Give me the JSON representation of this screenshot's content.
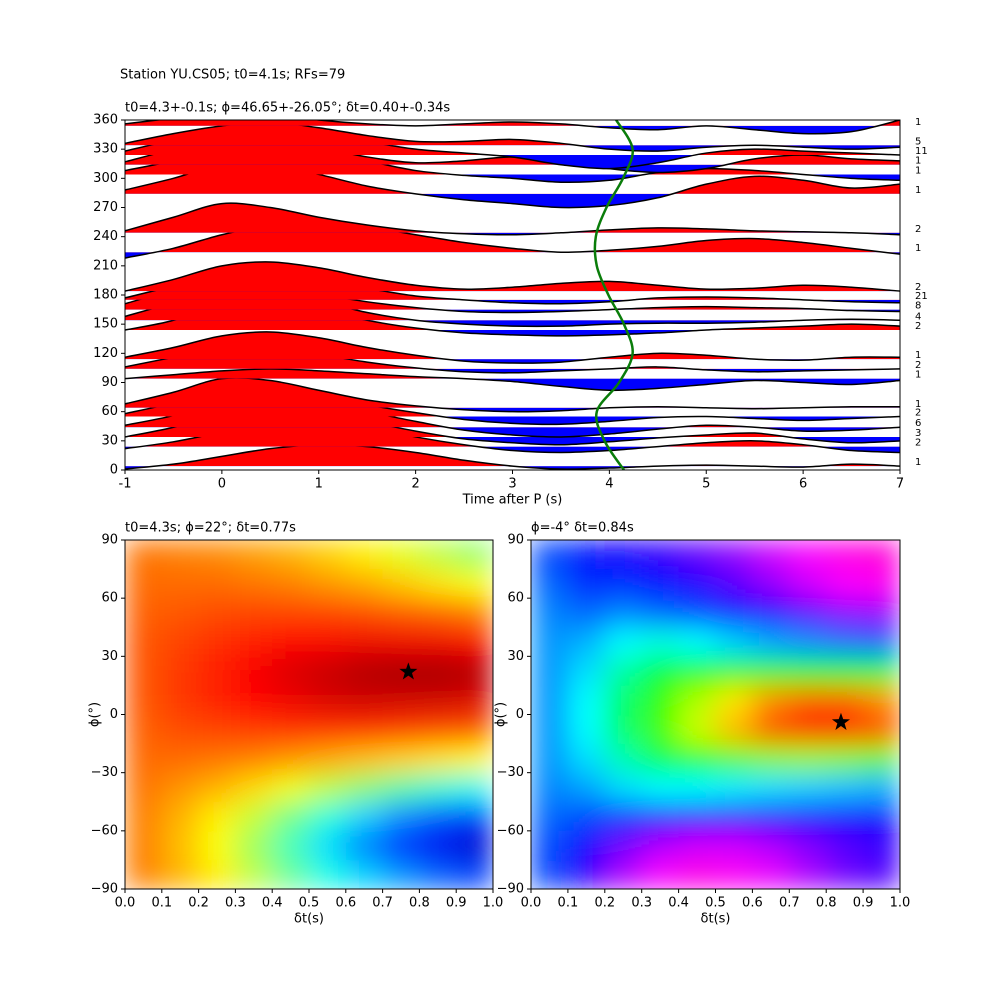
{
  "chart_data": [
    {
      "type": "wiggle",
      "suptitle": "Station YU.CS05; t0=4.1s; RFs=79",
      "title": "t0=4.3+-0.1s; ϕ=46.65+-26.05°; δt=0.40+-0.34s",
      "xlabel": "Time after P (s)",
      "xlim": [
        -1,
        7
      ],
      "xticks": [
        -1,
        0,
        1,
        2,
        3,
        4,
        5,
        6,
        7
      ],
      "ylim": [
        0,
        360
      ],
      "yticks": [
        0,
        30,
        60,
        90,
        120,
        150,
        180,
        210,
        240,
        270,
        300,
        330,
        360
      ],
      "positive_color": "#ff0000",
      "negative_color": "#0000ff",
      "times": [
        -1,
        -0.5,
        0,
        0.5,
        1,
        1.5,
        2,
        2.5,
        3,
        3.5,
        4,
        4.5,
        5,
        5.5,
        6,
        6.5,
        7
      ],
      "traces": [
        {
          "baz": 4,
          "count": 1,
          "values": [
            -3,
            2,
            10,
            18,
            22,
            20,
            14,
            6,
            0,
            -3,
            -2,
            0,
            1,
            0,
            -1,
            2,
            0
          ]
        },
        {
          "baz": 24,
          "count": 2,
          "values": [
            -2,
            5,
            15,
            24,
            26,
            20,
            10,
            2,
            -4,
            -6,
            -4,
            0,
            4,
            6,
            2,
            -4,
            -6
          ]
        },
        {
          "baz": 34,
          "count": 3,
          "values": [
            0,
            10,
            24,
            30,
            26,
            16,
            6,
            -2,
            -6,
            -8,
            -5,
            -1,
            2,
            4,
            -2,
            -6,
            -4
          ]
        },
        {
          "baz": 44,
          "count": 6,
          "values": [
            2,
            12,
            26,
            32,
            26,
            16,
            6,
            -3,
            -8,
            -10,
            -7,
            -2,
            2,
            0,
            -4,
            -3,
            0
          ]
        },
        {
          "baz": 55,
          "count": 2,
          "values": [
            3,
            14,
            28,
            30,
            22,
            12,
            4,
            -3,
            -7,
            -8,
            -5,
            -1,
            0,
            -2,
            -4,
            -2,
            0
          ]
        },
        {
          "baz": 64,
          "count": 1,
          "values": [
            4,
            16,
            30,
            28,
            18,
            8,
            2,
            -2,
            -4,
            -3,
            0,
            1,
            0,
            -1,
            0,
            1,
            1
          ]
        },
        {
          "baz": 94,
          "count": 1,
          "values": [
            0,
            4,
            8,
            10,
            8,
            5,
            2,
            0,
            -3,
            -8,
            -12,
            -10,
            -6,
            -2,
            -4,
            -6,
            -2
          ]
        },
        {
          "baz": 104,
          "count": 2,
          "values": [
            2,
            12,
            22,
            22,
            15,
            7,
            1,
            -3,
            -4,
            -2,
            0,
            2,
            -1,
            -3,
            -2,
            -1,
            0
          ]
        },
        {
          "baz": 114,
          "count": 1,
          "values": [
            2,
            12,
            24,
            28,
            22,
            12,
            4,
            -2,
            -4,
            -3,
            2,
            6,
            4,
            0,
            -1,
            2,
            2
          ]
        },
        {
          "baz": 144,
          "count": 2,
          "values": [
            0,
            10,
            28,
            32,
            22,
            10,
            2,
            -3,
            -5,
            -6,
            -5,
            -3,
            0,
            2,
            4,
            6,
            4
          ]
        },
        {
          "baz": 154,
          "count": 4,
          "values": [
            4,
            18,
            32,
            30,
            20,
            8,
            0,
            -4,
            -6,
            -6,
            -4,
            -3,
            -3,
            -2,
            0,
            1,
            0
          ]
        },
        {
          "baz": 165,
          "count": 8,
          "values": [
            6,
            20,
            30,
            26,
            16,
            8,
            2,
            -2,
            -3,
            -2,
            0,
            2,
            3,
            2,
            1,
            -1,
            -2
          ]
        },
        {
          "baz": 175,
          "count": 21,
          "values": [
            2,
            14,
            24,
            28,
            22,
            12,
            4,
            0,
            -3,
            -4,
            -2,
            2,
            3,
            2,
            0,
            -2,
            -3
          ]
        },
        {
          "baz": 184,
          "count": 2,
          "values": [
            0,
            12,
            26,
            30,
            24,
            14,
            6,
            2,
            4,
            8,
            10,
            6,
            2,
            3,
            6,
            4,
            0
          ]
        },
        {
          "baz": 224,
          "count": 1,
          "values": [
            -6,
            4,
            18,
            28,
            30,
            26,
            18,
            10,
            4,
            0,
            2,
            6,
            12,
            14,
            10,
            4,
            -2
          ]
        },
        {
          "baz": 244,
          "count": 2,
          "values": [
            2,
            16,
            30,
            26,
            16,
            8,
            2,
            -1,
            -2,
            0,
            3,
            5,
            4,
            2,
            1,
            0,
            -2
          ]
        },
        {
          "baz": 284,
          "count": 1,
          "values": [
            4,
            16,
            30,
            30,
            20,
            8,
            0,
            -6,
            -10,
            -14,
            -12,
            -4,
            10,
            18,
            14,
            6,
            10
          ]
        },
        {
          "baz": 304,
          "count": 1,
          "values": [
            4,
            14,
            26,
            30,
            24,
            14,
            4,
            -1,
            -4,
            -8,
            -6,
            2,
            6,
            4,
            0,
            -4,
            -6
          ]
        },
        {
          "baz": 314,
          "count": 1,
          "values": [
            3,
            16,
            28,
            28,
            18,
            8,
            2,
            4,
            8,
            4,
            -4,
            -8,
            -4,
            6,
            10,
            6,
            4
          ]
        },
        {
          "baz": 324,
          "count": 11,
          "values": [
            4,
            16,
            30,
            32,
            24,
            14,
            6,
            2,
            -2,
            -10,
            -14,
            -8,
            2,
            6,
            4,
            2,
            0
          ]
        },
        {
          "baz": 334,
          "count": 5,
          "values": [
            2,
            12,
            20,
            24,
            18,
            10,
            4,
            4,
            6,
            2,
            -4,
            -6,
            -2,
            0,
            -2,
            -4,
            -2
          ]
        },
        {
          "baz": 354,
          "count": 1,
          "values": [
            2,
            8,
            14,
            12,
            6,
            2,
            0,
            2,
            4,
            2,
            -2,
            -4,
            0,
            -4,
            -8,
            -6,
            6
          ]
        }
      ],
      "curve": {
        "color": "#0a7d0a",
        "baz": [
          0,
          30,
          60,
          90,
          120,
          150,
          180,
          210,
          240,
          270,
          300,
          330,
          360
        ],
        "time": [
          4.15,
          3.95,
          3.87,
          4.1,
          4.24,
          4.15,
          3.99,
          3.87,
          3.86,
          3.97,
          4.14,
          4.24,
          4.07
        ]
      }
    },
    {
      "type": "heatmap",
      "colormap": "jet",
      "zlim": [
        0,
        1
      ],
      "title": "t0=4.3s; ϕ=22°; δt=0.77s",
      "xlabel": "δt(s)",
      "ylabel": "ϕ(°)",
      "xlim": [
        0,
        1
      ],
      "ylim": [
        -90,
        90
      ],
      "xticks": [
        {
          "value": 0,
          "label": "0.0"
        },
        0.1,
        0.2,
        0.3,
        0.4,
        0.5,
        0.6,
        0.7,
        0.8,
        0.9,
        {
          "value": 1,
          "label": "1.0"
        }
      ],
      "yticks": [
        {
          "value": -90,
          "label": "−90"
        },
        {
          "value": -60,
          "label": "−60"
        },
        {
          "value": -30,
          "label": "−30"
        },
        0,
        30,
        60,
        90
      ],
      "xbins": [
        0,
        0.1,
        0.2,
        0.3,
        0.4,
        0.5,
        0.6,
        0.7,
        0.8,
        0.9,
        1
      ],
      "ybins": [
        -90,
        -75,
        -60,
        -45,
        -30,
        -15,
        0,
        15,
        30,
        45,
        60,
        75,
        90
      ],
      "z": [
        [
          0.75,
          0.7,
          0.64,
          0.56,
          0.48,
          0.4,
          0.33,
          0.27,
          0.22,
          0.19
        ],
        [
          0.75,
          0.69,
          0.62,
          0.53,
          0.44,
          0.34,
          0.25,
          0.17,
          0.11,
          0.08
        ],
        [
          0.75,
          0.7,
          0.64,
          0.57,
          0.49,
          0.41,
          0.33,
          0.26,
          0.21,
          0.18
        ],
        [
          0.76,
          0.73,
          0.7,
          0.66,
          0.61,
          0.56,
          0.51,
          0.46,
          0.42,
          0.39
        ],
        [
          0.77,
          0.77,
          0.76,
          0.75,
          0.73,
          0.71,
          0.69,
          0.67,
          0.65,
          0.63
        ],
        [
          0.78,
          0.8,
          0.81,
          0.82,
          0.83,
          0.83,
          0.83,
          0.82,
          0.81,
          0.8
        ],
        [
          0.79,
          0.82,
          0.84,
          0.87,
          0.89,
          0.91,
          0.92,
          0.92,
          0.92,
          0.91
        ],
        [
          0.79,
          0.82,
          0.85,
          0.88,
          0.91,
          0.93,
          0.95,
          0.96,
          0.96,
          0.95
        ],
        [
          0.79,
          0.81,
          0.83,
          0.85,
          0.87,
          0.88,
          0.89,
          0.89,
          0.89,
          0.88
        ],
        [
          0.78,
          0.79,
          0.8,
          0.81,
          0.81,
          0.81,
          0.8,
          0.79,
          0.78,
          0.76
        ],
        [
          0.77,
          0.77,
          0.77,
          0.76,
          0.75,
          0.73,
          0.71,
          0.68,
          0.65,
          0.62
        ],
        [
          0.76,
          0.75,
          0.74,
          0.72,
          0.7,
          0.67,
          0.64,
          0.6,
          0.56,
          0.52
        ]
      ],
      "marker": {
        "x": 0.77,
        "y": 22
      }
    },
    {
      "type": "heatmap",
      "colormap": "hsv",
      "zlim": [
        0,
        1
      ],
      "title": "ϕ=-4° δt=0.84s",
      "xlabel": "δt(s)",
      "ylabel": "ϕ(°)",
      "xlim": [
        0,
        1
      ],
      "ylim": [
        -90,
        90
      ],
      "xticks": [
        {
          "value": 0,
          "label": "0.0"
        },
        0.1,
        0.2,
        0.3,
        0.4,
        0.5,
        0.6,
        0.7,
        0.8,
        0.9,
        {
          "value": 1,
          "label": "1.0"
        }
      ],
      "yticks": [
        {
          "value": -90,
          "label": "−90"
        },
        {
          "value": -60,
          "label": "−60"
        },
        {
          "value": -30,
          "label": "−30"
        },
        0,
        30,
        60,
        90
      ],
      "xbins": [
        0,
        0.1,
        0.2,
        0.3,
        0.4,
        0.5,
        0.6,
        0.7,
        0.8,
        0.9,
        1
      ],
      "ybins": [
        -90,
        -75,
        -60,
        -45,
        -30,
        -15,
        0,
        15,
        30,
        45,
        60,
        75,
        90
      ],
      "z": [
        [
          0.62,
          0.7,
          0.78,
          0.83,
          0.85,
          0.84,
          0.82,
          0.78,
          0.74,
          0.72
        ],
        [
          0.62,
          0.68,
          0.74,
          0.78,
          0.8,
          0.8,
          0.78,
          0.75,
          0.72,
          0.7
        ],
        [
          0.6,
          0.62,
          0.64,
          0.66,
          0.67,
          0.68,
          0.68,
          0.68,
          0.68,
          0.68
        ],
        [
          0.58,
          0.56,
          0.52,
          0.5,
          0.5,
          0.51,
          0.52,
          0.53,
          0.54,
          0.55
        ],
        [
          0.57,
          0.52,
          0.45,
          0.38,
          0.32,
          0.28,
          0.25,
          0.24,
          0.25,
          0.27
        ],
        [
          0.57,
          0.5,
          0.4,
          0.29,
          0.2,
          0.12,
          0.05,
          0.02,
          0.02,
          0.05
        ],
        [
          0.57,
          0.5,
          0.4,
          0.3,
          0.22,
          0.15,
          0.09,
          0.06,
          0.06,
          0.09
        ],
        [
          0.57,
          0.52,
          0.44,
          0.37,
          0.33,
          0.32,
          0.32,
          0.33,
          0.34,
          0.36
        ],
        [
          0.57,
          0.55,
          0.5,
          0.48,
          0.5,
          0.53,
          0.56,
          0.58,
          0.6,
          0.61
        ],
        [
          0.58,
          0.6,
          0.58,
          0.6,
          0.62,
          0.65,
          0.68,
          0.72,
          0.75,
          0.76
        ],
        [
          0.6,
          0.64,
          0.64,
          0.66,
          0.69,
          0.72,
          0.76,
          0.8,
          0.83,
          0.84
        ],
        [
          0.62,
          0.66,
          0.68,
          0.7,
          0.73,
          0.76,
          0.8,
          0.83,
          0.85,
          0.86
        ]
      ],
      "marker": {
        "x": 0.84,
        "y": -4
      }
    }
  ]
}
